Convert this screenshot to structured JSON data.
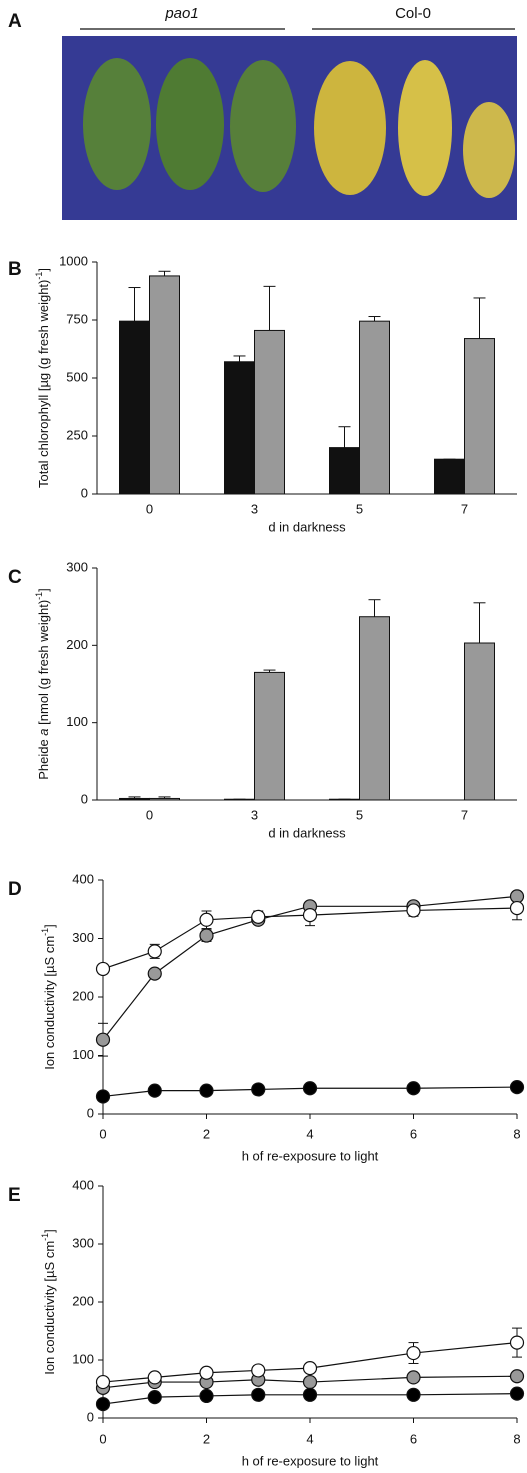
{
  "panel_a": {
    "letter": "A",
    "labels": [
      "pao1",
      "Col-0"
    ]
  },
  "chart_data": [
    {
      "type": "bar",
      "panel": "B",
      "ylabel": [
        "Total chlorophyll [µg (g fresh weight)",
        "-1",
        "]"
      ],
      "ylabel_sup": [
        1
      ],
      "ylabel_italic": [],
      "xlabel": "d in darkness",
      "categories": [
        "0",
        "3",
        "5",
        "7"
      ],
      "series": [
        {
          "color": "#111111",
          "values": [
            745,
            570,
            200,
            150
          ],
          "errors": [
            145,
            25,
            90,
            0
          ]
        },
        {
          "color": "#999999",
          "values": [
            940,
            705,
            745,
            670
          ],
          "errors": [
            20,
            190,
            20,
            175
          ]
        }
      ],
      "ylim": [
        0,
        1000
      ],
      "yticks": [
        0,
        250,
        500,
        750,
        1000
      ]
    },
    {
      "type": "bar",
      "panel": "C",
      "ylabel": [
        "Pheide ",
        "a",
        " [nmol (g fresh weight)",
        "-1",
        "]"
      ],
      "ylabel_sup": [
        3
      ],
      "ylabel_italic": [
        1
      ],
      "xlabel": "d in darkness",
      "categories": [
        "0",
        "3",
        "5",
        "7"
      ],
      "series": [
        {
          "color": "#111111",
          "values": [
            2,
            1,
            1,
            0
          ],
          "errors": [
            2,
            0,
            0,
            0
          ]
        },
        {
          "color": "#999999",
          "values": [
            2,
            165,
            237,
            203
          ],
          "errors": [
            2,
            3,
            22,
            52
          ]
        }
      ],
      "ylim": [
        0,
        300
      ],
      "yticks": [
        0,
        100,
        200,
        300
      ]
    },
    {
      "type": "line",
      "panel": "D",
      "ylabel": [
        "Ion conductivity [µS cm",
        "-1",
        "]"
      ],
      "ylabel_sup": [
        1
      ],
      "ylabel_italic": [],
      "xlabel": "h of re-exposure to light",
      "x": [
        0,
        1,
        2,
        3,
        4,
        6,
        8
      ],
      "series": [
        {
          "color": "#999999",
          "values": [
            127,
            240,
            305,
            332,
            355,
            355,
            372
          ],
          "errors": [
            28,
            5,
            10,
            8,
            5,
            5,
            8
          ]
        },
        {
          "color": "#ffffff",
          "values": [
            248,
            278,
            332,
            337,
            340,
            348,
            352
          ],
          "errors": [
            8,
            12,
            15,
            10,
            18,
            10,
            20
          ]
        },
        {
          "color": "#000000",
          "values": [
            30,
            40,
            40,
            42,
            44,
            44,
            46
          ],
          "errors": [
            3,
            3,
            3,
            3,
            3,
            3,
            3
          ]
        }
      ],
      "xlim": [
        0,
        8
      ],
      "xticks": [
        0,
        2,
        4,
        6,
        8
      ],
      "ylim": [
        0,
        400
      ],
      "yticks": [
        0,
        100,
        200,
        300,
        400
      ]
    },
    {
      "type": "line",
      "panel": "E",
      "ylabel": [
        "Ion conductivity [µS cm",
        "-1",
        "]"
      ],
      "ylabel_sup": [
        1
      ],
      "ylabel_italic": [],
      "xlabel": "h of re-exposure to light",
      "x": [
        0,
        1,
        2,
        3,
        4,
        6,
        8
      ],
      "series": [
        {
          "color": "#999999",
          "values": [
            52,
            62,
            62,
            66,
            62,
            70,
            72
          ],
          "errors": [
            5,
            5,
            5,
            5,
            5,
            5,
            5
          ]
        },
        {
          "color": "#ffffff",
          "values": [
            62,
            70,
            78,
            82,
            86,
            112,
            130
          ],
          "errors": [
            5,
            5,
            5,
            8,
            5,
            18,
            25
          ]
        },
        {
          "color": "#000000",
          "values": [
            24,
            36,
            38,
            40,
            40,
            40,
            42
          ],
          "errors": [
            3,
            3,
            3,
            3,
            3,
            3,
            3
          ]
        }
      ],
      "xlim": [
        0,
        8
      ],
      "xticks": [
        0,
        2,
        4,
        6,
        8
      ],
      "ylim": [
        0,
        400
      ],
      "yticks": [
        0,
        100,
        200,
        300,
        400
      ]
    }
  ]
}
